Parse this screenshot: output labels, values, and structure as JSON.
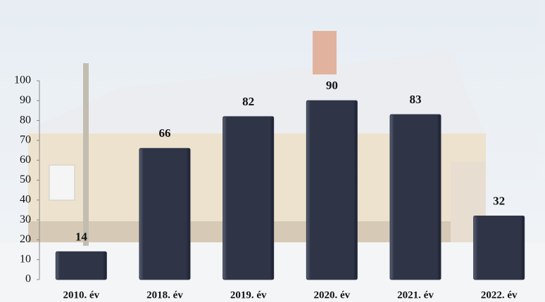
{
  "chart_data": {
    "type": "bar",
    "categories": [
      "2010. év",
      "2018. év",
      "2019. év",
      "2020. év",
      "2021. év",
      "2022. év"
    ],
    "values": [
      14,
      66,
      82,
      90,
      83,
      32
    ],
    "color": "#2f3547",
    "ylim": [
      0,
      100
    ],
    "yticks": [
      0,
      10,
      20,
      30,
      40,
      50,
      60,
      70,
      80,
      90,
      100
    ]
  }
}
